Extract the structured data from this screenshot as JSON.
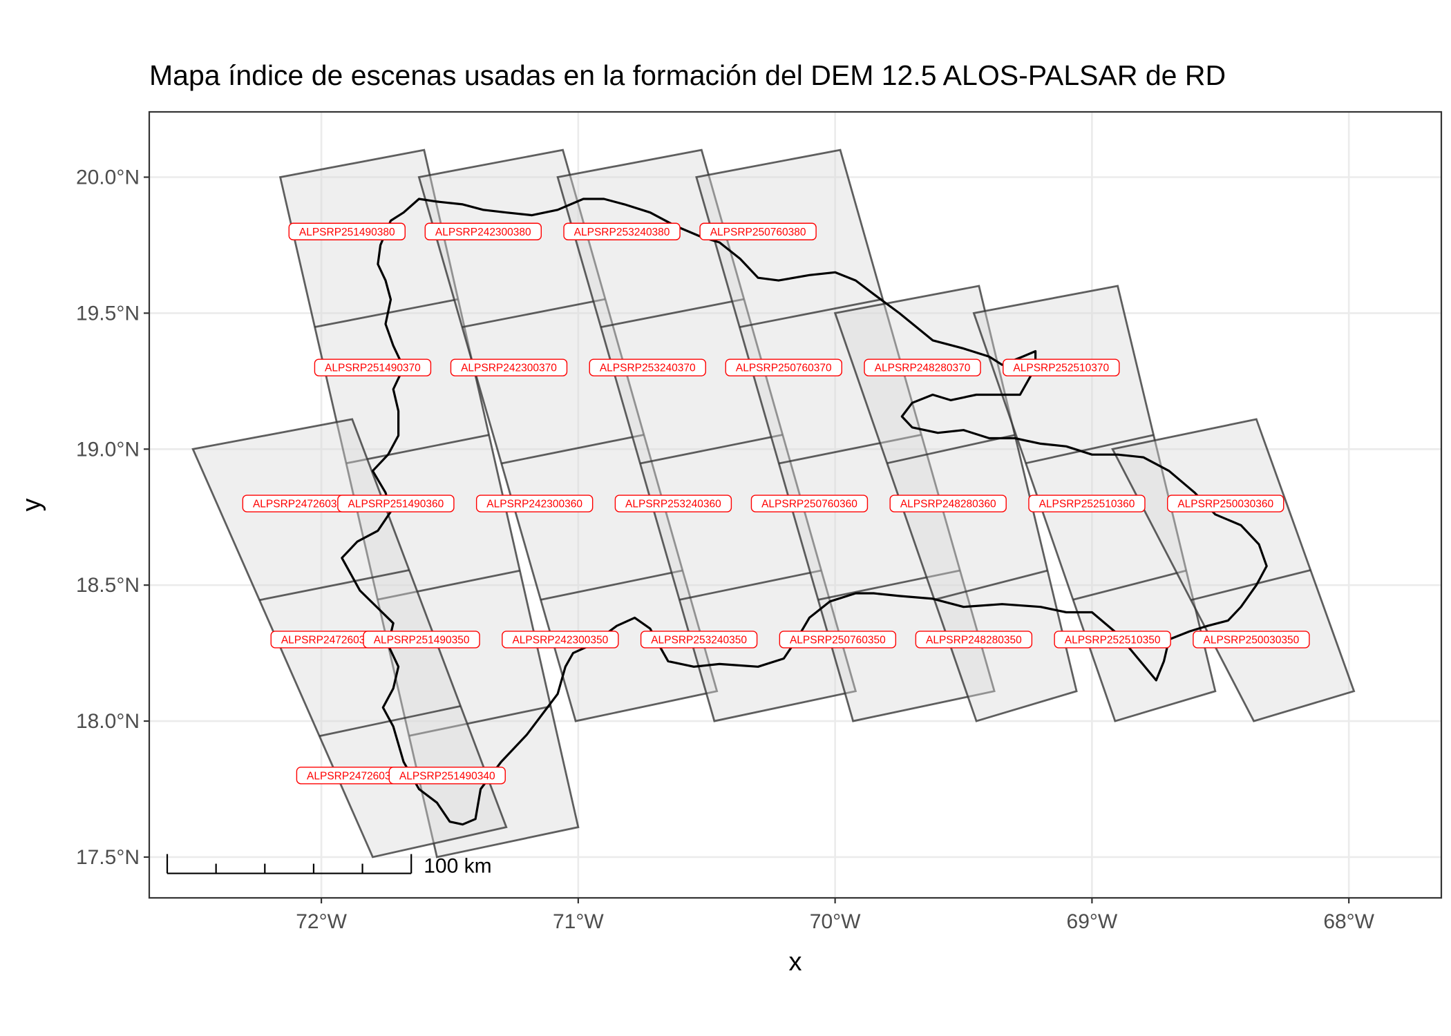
{
  "title": "Mapa índice de escenas usadas en la formación del DEM 12.5 ALOS-PALSAR de RD",
  "colors": {
    "background": "#ffffff",
    "panel_border": "#333333",
    "grid": "#ebebeb",
    "scene_fill": "#d9d9d9",
    "scene_border": "#333333",
    "coastline": "#000000",
    "label_text": "#ff0000",
    "label_border": "#ff0000",
    "tick_text": "#4d4d4d"
  },
  "chart_data": {
    "type": "map",
    "title": "Mapa índice de escenas usadas en la formación del DEM 12.5 ALOS-PALSAR de RD",
    "xlabel": "x",
    "ylabel": "y",
    "xlim": [
      -72.67,
      -67.64
    ],
    "ylim": [
      17.35,
      20.24
    ],
    "x_ticks": [
      -72,
      -71,
      -70,
      -69,
      -68
    ],
    "x_tick_labels": [
      "72°W",
      "71°W",
      "70°W",
      "69°W",
      "68°W"
    ],
    "y_ticks": [
      17.5,
      18.0,
      18.5,
      19.0,
      19.5,
      20.0
    ],
    "y_tick_labels": [
      "17.5°N",
      "18.0°N",
      "18.5°N",
      "19.0°N",
      "19.5°N",
      "20.0°N"
    ],
    "grid": true,
    "scale_bar": {
      "label": "100 km",
      "segments": 5,
      "lon_start": -72.6,
      "lon_end": -71.65,
      "lat": 17.44
    },
    "scenes": [
      {
        "id": "ALPSRP251490380",
        "lon": -71.9,
        "lat": 19.8
      },
      {
        "id": "ALPSRP242300380",
        "lon": -71.37,
        "lat": 19.8
      },
      {
        "id": "ALPSRP253240380",
        "lon": -70.83,
        "lat": 19.8
      },
      {
        "id": "ALPSRP250760380",
        "lon": -70.3,
        "lat": 19.8
      },
      {
        "id": "ALPSRP251490370",
        "lon": -71.8,
        "lat": 19.3
      },
      {
        "id": "ALPSRP242300370",
        "lon": -71.27,
        "lat": 19.3
      },
      {
        "id": "ALPSRP253240370",
        "lon": -70.73,
        "lat": 19.3
      },
      {
        "id": "ALPSRP250760370",
        "lon": -70.2,
        "lat": 19.3
      },
      {
        "id": "ALPSRP248280370",
        "lon": -69.66,
        "lat": 19.3
      },
      {
        "id": "ALPSRP252510370",
        "lon": -69.12,
        "lat": 19.3
      },
      {
        "id": "ALPSRP247260360",
        "lon": -72.08,
        "lat": 18.8
      },
      {
        "id": "ALPSRP251490360",
        "lon": -71.71,
        "lat": 18.8
      },
      {
        "id": "ALPSRP242300360",
        "lon": -71.17,
        "lat": 18.8
      },
      {
        "id": "ALPSRP253240360",
        "lon": -70.63,
        "lat": 18.8
      },
      {
        "id": "ALPSRP250760360",
        "lon": -70.1,
        "lat": 18.8
      },
      {
        "id": "ALPSRP248280360",
        "lon": -69.56,
        "lat": 18.8
      },
      {
        "id": "ALPSRP252510360",
        "lon": -69.02,
        "lat": 18.8
      },
      {
        "id": "ALPSRP250030360",
        "lon": -68.48,
        "lat": 18.8
      },
      {
        "id": "ALPSRP247260350",
        "lon": -71.97,
        "lat": 18.3
      },
      {
        "id": "ALPSRP251490350",
        "lon": -71.61,
        "lat": 18.3
      },
      {
        "id": "ALPSRP242300350",
        "lon": -71.07,
        "lat": 18.3
      },
      {
        "id": "ALPSRP253240350",
        "lon": -70.53,
        "lat": 18.3
      },
      {
        "id": "ALPSRP250760350",
        "lon": -69.99,
        "lat": 18.3
      },
      {
        "id": "ALPSRP248280350",
        "lon": -69.46,
        "lat": 18.3
      },
      {
        "id": "ALPSRP252510350",
        "lon": -68.92,
        "lat": 18.3
      },
      {
        "id": "ALPSRP250030350",
        "lon": -68.38,
        "lat": 18.3
      },
      {
        "id": "ALPSRP247260340",
        "lon": -71.87,
        "lat": 17.8
      },
      {
        "id": "ALPSRP251490340",
        "lon": -71.51,
        "lat": 17.8
      }
    ],
    "strips": [
      {
        "corners": [
          [
            -72.16,
            20.0
          ],
          [
            -71.6,
            20.1
          ],
          [
            -71.0,
            17.61
          ],
          [
            -71.55,
            17.5
          ]
        ],
        "rows": [
          19.5,
          19.0,
          18.5,
          18.0
        ]
      },
      {
        "corners": [
          [
            -71.62,
            20.0
          ],
          [
            -71.06,
            20.1
          ],
          [
            -70.46,
            18.11
          ],
          [
            -71.01,
            18.0
          ]
        ],
        "rows": [
          19.5,
          19.0,
          18.5
        ]
      },
      {
        "corners": [
          [
            -71.08,
            20.0
          ],
          [
            -70.52,
            20.1
          ],
          [
            -69.92,
            18.11
          ],
          [
            -70.47,
            18.0
          ]
        ],
        "rows": [
          19.5,
          19.0,
          18.5
        ]
      },
      {
        "corners": [
          [
            -70.54,
            20.0
          ],
          [
            -69.98,
            20.1
          ],
          [
            -69.38,
            18.11
          ],
          [
            -69.93,
            18.0
          ]
        ],
        "rows": [
          19.5,
          19.0,
          18.5
        ]
      },
      {
        "corners": [
          [
            -70.0,
            19.5
          ],
          [
            -69.44,
            19.6
          ],
          [
            -69.06,
            18.11
          ],
          [
            -69.45,
            18.0
          ]
        ],
        "rows": [
          19.0,
          18.5
        ]
      },
      {
        "corners": [
          [
            -69.46,
            19.5
          ],
          [
            -68.9,
            19.6
          ],
          [
            -68.52,
            18.11
          ],
          [
            -68.91,
            18.0
          ]
        ],
        "rows": [
          19.0,
          18.5
        ]
      },
      {
        "corners": [
          [
            -72.5,
            19.0
          ],
          [
            -71.88,
            19.11
          ],
          [
            -71.28,
            17.61
          ],
          [
            -71.8,
            17.5
          ]
        ],
        "rows": [
          18.5,
          18.0
        ]
      },
      {
        "corners": [
          [
            -68.92,
            19.0
          ],
          [
            -68.36,
            19.11
          ],
          [
            -67.98,
            18.11
          ],
          [
            -68.37,
            18.0
          ]
        ],
        "rows": [
          18.5
        ]
      }
    ],
    "coastline": [
      [
        -71.73,
        19.84
      ],
      [
        -71.68,
        19.87
      ],
      [
        -71.62,
        19.92
      ],
      [
        -71.55,
        19.91
      ],
      [
        -71.45,
        19.9
      ],
      [
        -71.37,
        19.88
      ],
      [
        -71.28,
        19.87
      ],
      [
        -71.18,
        19.86
      ],
      [
        -71.08,
        19.88
      ],
      [
        -70.98,
        19.92
      ],
      [
        -70.9,
        19.92
      ],
      [
        -70.82,
        19.9
      ],
      [
        -70.72,
        19.87
      ],
      [
        -70.62,
        19.82
      ],
      [
        -70.52,
        19.78
      ],
      [
        -70.45,
        19.76
      ],
      [
        -70.37,
        19.7
      ],
      [
        -70.3,
        19.63
      ],
      [
        -70.22,
        19.62
      ],
      [
        -70.1,
        19.64
      ],
      [
        -70.0,
        19.65
      ],
      [
        -69.92,
        19.62
      ],
      [
        -69.85,
        19.57
      ],
      [
        -69.75,
        19.5
      ],
      [
        -69.62,
        19.4
      ],
      [
        -69.5,
        19.37
      ],
      [
        -69.4,
        19.34
      ],
      [
        -69.35,
        19.31
      ],
      [
        -69.27,
        19.34
      ],
      [
        -69.22,
        19.36
      ],
      [
        -69.22,
        19.3
      ],
      [
        -69.28,
        19.2
      ],
      [
        -69.35,
        19.2
      ],
      [
        -69.45,
        19.2
      ],
      [
        -69.55,
        19.18
      ],
      [
        -69.62,
        19.2
      ],
      [
        -69.7,
        19.17
      ],
      [
        -69.74,
        19.12
      ],
      [
        -69.7,
        19.08
      ],
      [
        -69.6,
        19.06
      ],
      [
        -69.5,
        19.07
      ],
      [
        -69.4,
        19.04
      ],
      [
        -69.3,
        19.04
      ],
      [
        -69.2,
        19.02
      ],
      [
        -69.1,
        19.01
      ],
      [
        -69.0,
        18.98
      ],
      [
        -68.9,
        18.98
      ],
      [
        -68.8,
        18.97
      ],
      [
        -68.7,
        18.92
      ],
      [
        -68.6,
        18.84
      ],
      [
        -68.52,
        18.76
      ],
      [
        -68.42,
        18.72
      ],
      [
        -68.35,
        18.65
      ],
      [
        -68.32,
        18.57
      ],
      [
        -68.36,
        18.5
      ],
      [
        -68.42,
        18.42
      ],
      [
        -68.47,
        18.37
      ],
      [
        -68.55,
        18.35
      ],
      [
        -68.62,
        18.33
      ],
      [
        -68.7,
        18.3
      ],
      [
        -68.72,
        18.22
      ],
      [
        -68.75,
        18.15
      ],
      [
        -68.9,
        18.32
      ],
      [
        -69.0,
        18.4
      ],
      [
        -69.1,
        18.4
      ],
      [
        -69.2,
        18.42
      ],
      [
        -69.35,
        18.43
      ],
      [
        -69.5,
        18.42
      ],
      [
        -69.62,
        18.45
      ],
      [
        -69.75,
        18.46
      ],
      [
        -69.85,
        18.47
      ],
      [
        -69.92,
        18.47
      ],
      [
        -70.02,
        18.44
      ],
      [
        -70.1,
        18.38
      ],
      [
        -70.15,
        18.3
      ],
      [
        -70.2,
        18.23
      ],
      [
        -70.3,
        18.2
      ],
      [
        -70.45,
        18.21
      ],
      [
        -70.55,
        18.2
      ],
      [
        -70.65,
        18.22
      ],
      [
        -70.68,
        18.27
      ],
      [
        -70.72,
        18.34
      ],
      [
        -70.78,
        18.38
      ],
      [
        -70.85,
        18.35
      ],
      [
        -70.95,
        18.28
      ],
      [
        -71.02,
        18.25
      ],
      [
        -71.05,
        18.2
      ],
      [
        -71.08,
        18.1
      ],
      [
        -71.12,
        18.05
      ],
      [
        -71.2,
        17.95
      ],
      [
        -71.3,
        17.85
      ],
      [
        -71.38,
        17.75
      ],
      [
        -71.4,
        17.64
      ],
      [
        -71.45,
        17.62
      ],
      [
        -71.5,
        17.63
      ],
      [
        -71.55,
        17.7
      ],
      [
        -71.62,
        17.75
      ],
      [
        -71.68,
        17.85
      ],
      [
        -71.72,
        17.98
      ],
      [
        -71.76,
        18.05
      ],
      [
        -71.72,
        18.12
      ],
      [
        -71.7,
        18.2
      ],
      [
        -71.74,
        18.28
      ],
      [
        -71.72,
        18.36
      ],
      [
        -71.85,
        18.48
      ],
      [
        -71.92,
        18.6
      ],
      [
        -71.86,
        18.66
      ],
      [
        -71.78,
        18.7
      ],
      [
        -71.73,
        18.77
      ],
      [
        -71.75,
        18.84
      ],
      [
        -71.8,
        18.92
      ],
      [
        -71.74,
        18.98
      ],
      [
        -71.7,
        19.05
      ],
      [
        -71.7,
        19.14
      ],
      [
        -71.72,
        19.22
      ],
      [
        -71.68,
        19.3
      ],
      [
        -71.72,
        19.38
      ],
      [
        -71.75,
        19.46
      ],
      [
        -71.73,
        19.55
      ],
      [
        -71.75,
        19.62
      ],
      [
        -71.78,
        19.68
      ],
      [
        -71.77,
        19.75
      ],
      [
        -71.73,
        19.84
      ]
    ]
  }
}
